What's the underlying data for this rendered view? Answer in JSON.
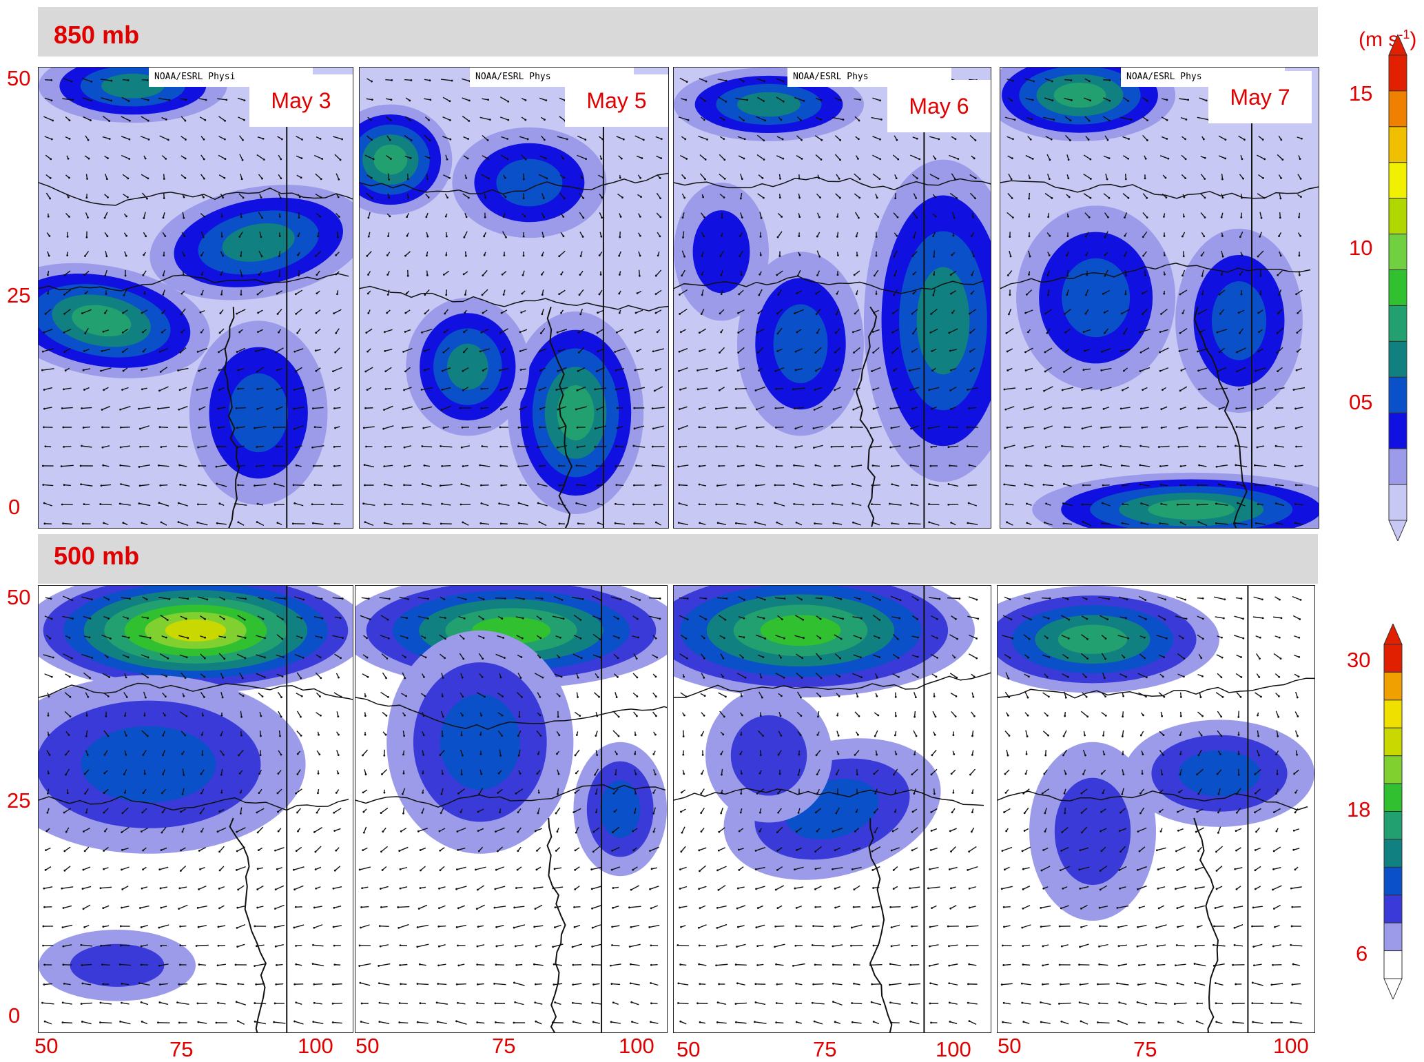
{
  "levels": [
    {
      "label": "850 mb",
      "colorbar_ticks": [
        "15",
        "10",
        "05"
      ],
      "unit_text": "(m s",
      "unit_sup": "-1",
      "unit_close": ")",
      "panels": [
        {
          "date": "May 3",
          "credit": "NOAA/ESRL Physi"
        },
        {
          "date": "May 5",
          "credit": "NOAA/ESRL Phys"
        },
        {
          "date": "May 6",
          "credit": "NOAA/ESRL Phys"
        },
        {
          "date": "May 7",
          "credit": "NOAA/ESRL Phys"
        }
      ]
    },
    {
      "label": "500 mb",
      "colorbar_ticks": [
        "30",
        "18",
        "6"
      ],
      "panels": [
        {},
        {},
        {},
        {}
      ]
    }
  ],
  "lat_ticks": [
    "50",
    "25",
    "0"
  ],
  "lon_ticks": [
    "50",
    "75",
    "100"
  ],
  "colors": {
    "label_red": "#e00000",
    "band_gray": "#d9d9d9",
    "scale_850": [
      "#c8c8f5",
      "#9b9bea",
      "#1010e0",
      "#0a50c8",
      "#108080",
      "#22a070",
      "#30c030",
      "#70d040",
      "#b0d800",
      "#f0f000",
      "#f0c000",
      "#f08000",
      "#e02000"
    ],
    "scale_500": [
      "#ffffff",
      "#9b9bea",
      "#3a3ad8",
      "#0a50c8",
      "#108080",
      "#22a070",
      "#30c030",
      "#80d030",
      "#c8d800",
      "#f0e000",
      "#f0a000",
      "#e02000"
    ]
  }
}
